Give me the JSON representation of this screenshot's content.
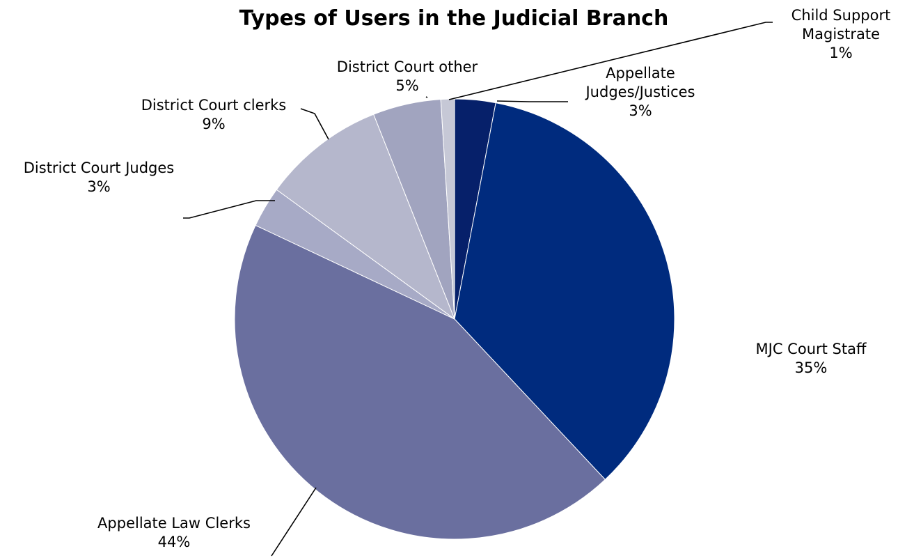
{
  "chart_data": {
    "type": "pie",
    "title": "Types of Users in the Judicial Branch",
    "slices": [
      {
        "label": "Appellate Judges/Justices",
        "display_label": [
          "Appellate",
          "Judges/Justices"
        ],
        "value": 3,
        "percent_label": "3%",
        "color": "#06206a"
      },
      {
        "label": "MJC Court Staff",
        "display_label": [
          "MJC Court Staff"
        ],
        "value": 35,
        "percent_label": "35%",
        "color": "#002b7e"
      },
      {
        "label": "Appellate Law Clerks",
        "display_label": [
          "Appellate Law Clerks"
        ],
        "value": 44,
        "percent_label": "44%",
        "color": "#6a6f9f"
      },
      {
        "label": "District Court Judges",
        "display_label": [
          "District Court Judges"
        ],
        "value": 3,
        "percent_label": "3%",
        "color": "#a7aac6"
      },
      {
        "label": "District Court clerks",
        "display_label": [
          "District Court clerks"
        ],
        "value": 9,
        "percent_label": "9%",
        "color": "#b5b7cc"
      },
      {
        "label": "District Court other",
        "display_label": [
          "District Court other"
        ],
        "value": 5,
        "percent_label": "5%",
        "color": "#a1a4bf"
      },
      {
        "label": "Child Support Magistrate",
        "display_label": [
          "Child Support",
          "Magistrate"
        ],
        "value": 1,
        "percent_label": "1%",
        "color": "#c6c8d6"
      }
    ],
    "start": "12 o'clock",
    "direction": "clockwise"
  }
}
